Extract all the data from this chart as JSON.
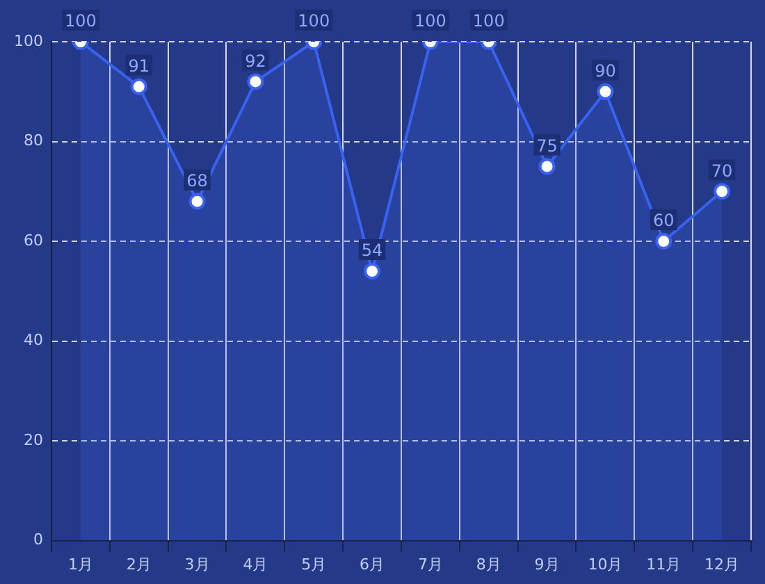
{
  "chart_data": {
    "type": "area",
    "categories": [
      "1月",
      "2月",
      "3月",
      "4月",
      "5月",
      "6月",
      "7月",
      "8月",
      "9月",
      "10月",
      "11月",
      "12月"
    ],
    "series": [
      {
        "color": "#3a62f0",
        "values": [
          100,
          91,
          68,
          92,
          100,
          54,
          100,
          100,
          75,
          90,
          60,
          70
        ]
      }
    ],
    "ylim": [
      0,
      100
    ],
    "yticks": [
      0,
      20,
      40,
      60,
      80,
      100
    ],
    "grid": true,
    "line_style": "solid",
    "marker": "circle",
    "data_labels": true,
    "legend": false
  }
}
